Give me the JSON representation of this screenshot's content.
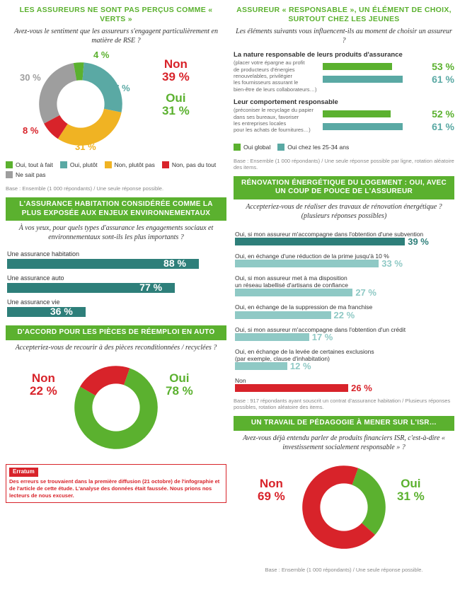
{
  "colors": {
    "green": "#5bb12f",
    "teal": "#5aa9a4",
    "teal_light": "#8fc9c5",
    "teal_dark": "#2e7f7a",
    "yellow": "#f0b323",
    "red": "#d8232a",
    "grey": "#9e9e9e"
  },
  "p1": {
    "title": "LES ASSUREURS NE SONT\nPAS PERÇUS COMME « VERTS »",
    "question": "Avez-vous le sentiment que les assureurs\ns'engagent particulièrement en matière de RSE ?",
    "donut": {
      "slices": [
        {
          "label": "Oui, tout à fait",
          "value": 4,
          "color": "#5bb12f"
        },
        {
          "label": "Oui, plutôt",
          "value": 27,
          "color": "#5aa9a4"
        },
        {
          "label": "Non, plutôt pas",
          "value": 31,
          "color": "#f0b323"
        },
        {
          "label": "Non, pas du tout",
          "value": 8,
          "color": "#d8232a"
        },
        {
          "label": "Ne sait pas",
          "value": 30,
          "color": "#9e9e9e"
        }
      ],
      "summary_non": {
        "label": "Non",
        "value": "39 %",
        "color": "#d8232a"
      },
      "summary_oui": {
        "label": "Oui",
        "value": "31 %",
        "color": "#5bb12f"
      }
    },
    "base": "Base : Ensemble (1 000 répondants) / Une seule réponse possible."
  },
  "p2": {
    "title": "L'ASSURANCE HABITATION CONSIDÉRÉE COMME\nLA PLUS EXPOSÉE AUX ENJEUX ENVIRONNEMENTAUX",
    "question": "À vos yeux, pour quels types d'assurance les engagements sociaux\net environnementaux sont-ils les plus importants ?",
    "bars": [
      {
        "label": "Une assurance habitation",
        "value": 88,
        "display": "88 %",
        "color": "#2e7f7a"
      },
      {
        "label": "Une assurance auto",
        "value": 77,
        "display": "77 %",
        "color": "#2e7f7a"
      },
      {
        "label": "Une assurance vie",
        "value": 36,
        "display": "36 %",
        "color": "#2e7f7a"
      }
    ]
  },
  "p3": {
    "title": "D'ACCORD POUR LES PIÈCES DE RÉEMPLOI EN AUTO",
    "question": "Accepteriez-vous de recourir à des pièces\nreconditionnées / recyclées ?",
    "donut": {
      "oui": {
        "label": "Oui",
        "value": 78,
        "display": "78 %",
        "color": "#5bb12f"
      },
      "non": {
        "label": "Non",
        "value": 22,
        "display": "22 %",
        "color": "#d8232a"
      }
    },
    "erratum": {
      "tag": "Erratum",
      "text": "Des erreurs se trouvaient dans la première diffusion (21 octobre) de l'infographie et de l'article de cette étude. L'analyse des données était faussée. Nous prions nos lecteurs de nous excuser."
    }
  },
  "p4": {
    "title": "ASSUREUR « RESPONSABLE », UN ÉLÉMENT\nDE CHOIX, SURTOUT CHEZ LES JEUNES",
    "question": "Les éléments suivants vous influencent-ils\nau moment de choisir un assureur ?",
    "blocks": [
      {
        "heading": "La nature responsable de leurs produits d'assurance",
        "sub": "(placer votre épargne au profit\nde producteurs d'énergies\nrenouvelables, privilégier\nles fournisseurs assurant le\nbien-être de leurs collaborateurs…)",
        "global": {
          "value": 53,
          "display": "53 %",
          "color": "#5bb12f"
        },
        "young": {
          "value": 61,
          "display": "61 %",
          "color": "#5aa9a4"
        }
      },
      {
        "heading": "Leur comportement responsable",
        "sub": "(préconiser le recyclage du papier\ndans ses bureaux, favoriser\nles entreprises locales\npour les achats de fournitures…)",
        "global": {
          "value": 52,
          "display": "52 %",
          "color": "#5bb12f"
        },
        "young": {
          "value": 61,
          "display": "61 %",
          "color": "#5aa9a4"
        }
      }
    ],
    "legend": [
      {
        "label": "Oui global",
        "color": "#5bb12f"
      },
      {
        "label": "Oui chez les 25-34 ans",
        "color": "#5aa9a4"
      }
    ],
    "base": "Base : Ensemble (1 000 répondants) / Une seule réponse possible par ligne,\nrotation aléatoire des items."
  },
  "p5": {
    "title": "RÉNOVATION ÉNERGÉTIQUE DU LOGEMENT :\nOUI, AVEC UN COUP DE POUCE DE L'ASSUREUR",
    "question": "Accepteriez-vous de réaliser des travaux\nde rénovation énergétique ? (plusieurs réponses possibles)",
    "bars": [
      {
        "label": "Oui, si mon assureur m'accompagne dans l'obtention d'une subvention",
        "value": 39,
        "display": "39 %",
        "color": "#2e7f7a"
      },
      {
        "label": "Oui, en échange d'une réduction de la prime jusqu'à 10 %",
        "value": 33,
        "display": "33 %",
        "color": "#8fc9c5"
      },
      {
        "label": "Oui, si mon assureur met à ma disposition\nun réseau labellisé d'artisans de confiance",
        "value": 27,
        "display": "27 %",
        "color": "#8fc9c5"
      },
      {
        "label": "Oui, en échange de la suppression de ma franchise",
        "value": 22,
        "display": "22 %",
        "color": "#8fc9c5"
      },
      {
        "label": "Oui, si mon assureur m'accompagne dans l'obtention d'un crédit",
        "value": 17,
        "display": "17 %",
        "color": "#8fc9c5"
      },
      {
        "label": "Oui, en échange de la levée de certaines exclusions\n(par exemple, clause d'inhabitation)",
        "value": 12,
        "display": "12 %",
        "color": "#8fc9c5"
      },
      {
        "label": "Non",
        "value": 26,
        "display": "26 %",
        "color": "#d8232a"
      }
    ],
    "base": "Base : 917 répondants ayant souscrit un contrat d'assurance habitation /\nPlusieurs réponses possibles, rotation aléatoire des items."
  },
  "p6": {
    "title": "UN TRAVAIL DE PÉDAGOGIE À MENER SUR L'ISR…",
    "question": "Avez-vous déjà entendu parler de produits financiers ISR,\nc'est-à-dire « investissement socialement responsable » ?",
    "donut": {
      "oui": {
        "label": "Oui",
        "value": 31,
        "display": "31 %",
        "color": "#5bb12f"
      },
      "non": {
        "label": "Non",
        "value": 69,
        "display": "69 %",
        "color": "#d8232a"
      }
    },
    "base": "Base : Ensemble (1 000 répondants) / Une seule réponse possible."
  }
}
